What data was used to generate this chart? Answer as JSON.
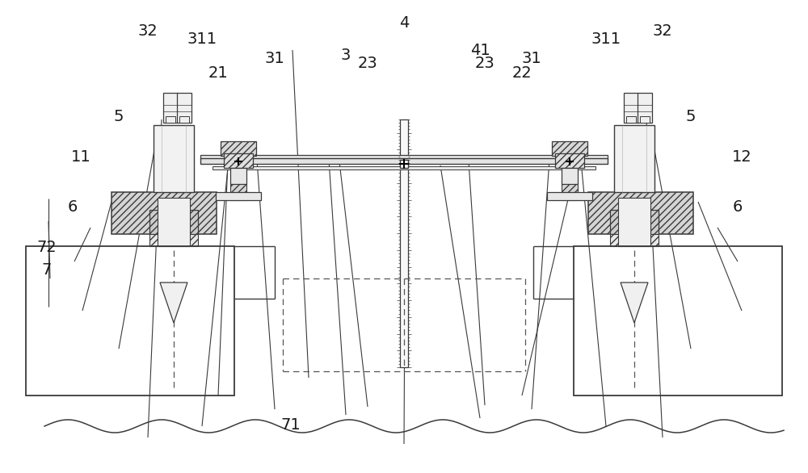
{
  "bg_color": "#ffffff",
  "lc": "#3a3a3a",
  "label_color": "#1a1a1a",
  "fig_width": 10.0,
  "fig_height": 5.86,
  "fs": 14,
  "labels": [
    [
      "4",
      500,
      28
    ],
    [
      "41",
      598,
      62
    ],
    [
      "23",
      459,
      78
    ],
    [
      "3",
      432,
      68
    ],
    [
      "21",
      272,
      90
    ],
    [
      "31",
      343,
      73
    ],
    [
      "311",
      253,
      52
    ],
    [
      "32",
      185,
      38
    ],
    [
      "5",
      148,
      148
    ],
    [
      "11",
      100,
      195
    ],
    [
      "6",
      90,
      258
    ],
    [
      "72",
      58,
      308
    ],
    [
      "7",
      58,
      335
    ],
    [
      "71",
      360,
      528
    ],
    [
      "41",
      598,
      62
    ],
    [
      "23",
      604,
      78
    ],
    [
      "31",
      659,
      73
    ],
    [
      "22",
      647,
      90
    ],
    [
      "311",
      751,
      52
    ],
    [
      "32",
      822,
      38
    ],
    [
      "5",
      858,
      148
    ],
    [
      "12",
      920,
      195
    ],
    [
      "6",
      915,
      258
    ]
  ],
  "ann_lines": [
    [
      500,
      38,
      500,
      148
    ],
    [
      598,
      72,
      545,
      208
    ],
    [
      459,
      86,
      430,
      205
    ],
    [
      432,
      76,
      415,
      205
    ],
    [
      272,
      98,
      295,
      205
    ],
    [
      343,
      81,
      325,
      205
    ],
    [
      253,
      60,
      275,
      165
    ],
    [
      185,
      46,
      215,
      152
    ],
    [
      148,
      156,
      200,
      175
    ],
    [
      100,
      203,
      130,
      248
    ],
    [
      90,
      264,
      100,
      280
    ],
    [
      58,
      314,
      68,
      325
    ],
    [
      58,
      341,
      60,
      370
    ],
    [
      360,
      522,
      390,
      460
    ],
    [
      604,
      86,
      578,
      205
    ],
    [
      659,
      81,
      675,
      205
    ],
    [
      647,
      98,
      710,
      205
    ],
    [
      751,
      60,
      726,
      165
    ],
    [
      822,
      46,
      790,
      152
    ],
    [
      858,
      156,
      805,
      175
    ],
    [
      920,
      203,
      875,
      248
    ],
    [
      915,
      264,
      905,
      280
    ]
  ]
}
